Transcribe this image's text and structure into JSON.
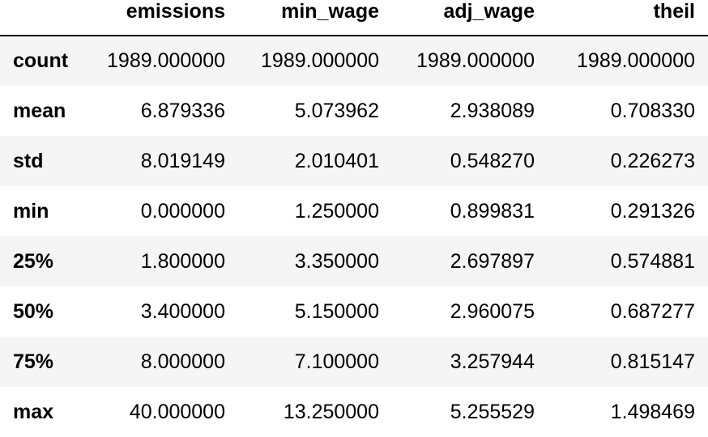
{
  "table": {
    "columns": [
      "emissions",
      "min_wage",
      "adj_wage",
      "theil"
    ],
    "rows": [
      {
        "label": "count",
        "values": [
          "1989.000000",
          "1989.000000",
          "1989.000000",
          "1989.000000"
        ]
      },
      {
        "label": "mean",
        "values": [
          "6.879336",
          "5.073962",
          "2.938089",
          "0.708330"
        ]
      },
      {
        "label": "std",
        "values": [
          "8.019149",
          "2.010401",
          "0.548270",
          "0.226273"
        ]
      },
      {
        "label": "min",
        "values": [
          "0.000000",
          "1.250000",
          "0.899831",
          "0.291326"
        ]
      },
      {
        "label": "25%",
        "values": [
          "1.800000",
          "3.350000",
          "2.697897",
          "0.574881"
        ]
      },
      {
        "label": "50%",
        "values": [
          "3.400000",
          "5.150000",
          "2.960075",
          "0.687277"
        ]
      },
      {
        "label": "75%",
        "values": [
          "8.000000",
          "7.100000",
          "3.257944",
          "0.815147"
        ]
      },
      {
        "label": "max",
        "values": [
          "40.000000",
          "13.250000",
          "5.255529",
          "1.498469"
        ]
      }
    ]
  }
}
